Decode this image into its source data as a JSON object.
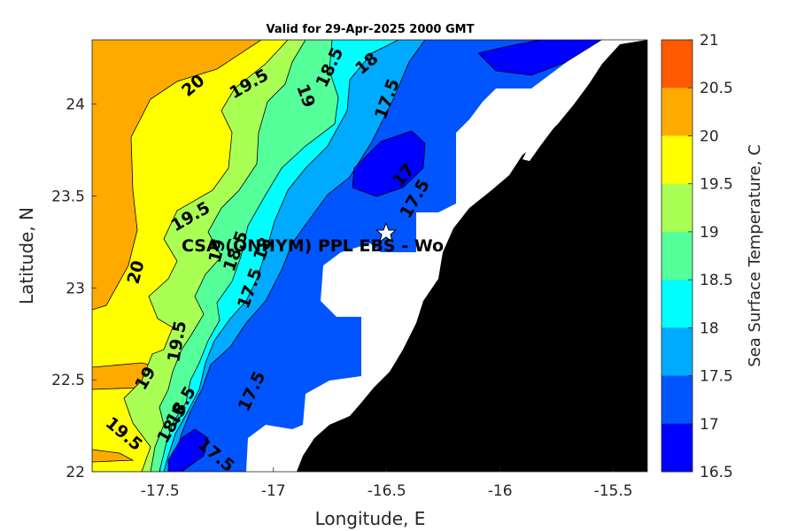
{
  "title": "Valid for 29-Apr-2025 2000 GMT",
  "xlabel": "Longitude, E",
  "ylabel": "Latitude, N",
  "colorbar_label": "Sea Surface Temperature, C",
  "station_label": "CSA (ONHYM) PPL EBS  - Wo",
  "x_ticks": [
    "-17.5",
    "-17",
    "-16.5",
    "-16",
    "-15.5"
  ],
  "y_ticks": [
    "24",
    "23.5",
    "23",
    "22.5",
    "22"
  ],
  "colorbar_ticks": [
    "21",
    "20.5",
    "20",
    "19.5",
    "19",
    "18.5",
    "18",
    "17.5",
    "17",
    "16.5"
  ],
  "colorbar_colors": [
    "#ff5a00",
    "#ffaa00",
    "#ffff00",
    "#aaff55",
    "#55ff99",
    "#00ffff",
    "#00aaff",
    "#0055ff",
    "#0000ff"
  ],
  "land_color": "#000000",
  "contour_labels": [
    "20",
    "19.5",
    "19",
    "18.5",
    "18",
    "17.5",
    "17",
    "17.5",
    "19.5",
    "19",
    "18.5",
    "18",
    "17.5",
    "20",
    "19.5",
    "19",
    "18.5",
    "17.5",
    "19.5",
    "18.5",
    "17.5"
  ],
  "chart_data": {
    "type": "map",
    "variable": "Sea Surface Temperature",
    "units": "C",
    "xlim": [
      -17.8,
      -15.35
    ],
    "ylim": [
      22.0,
      24.35
    ],
    "color_levels": [
      16.5,
      17,
      17.5,
      18,
      18.5,
      19,
      19.5,
      20,
      20.5,
      21
    ],
    "station_marker": {
      "lon": -16.48,
      "lat": 23.29
    }
  }
}
